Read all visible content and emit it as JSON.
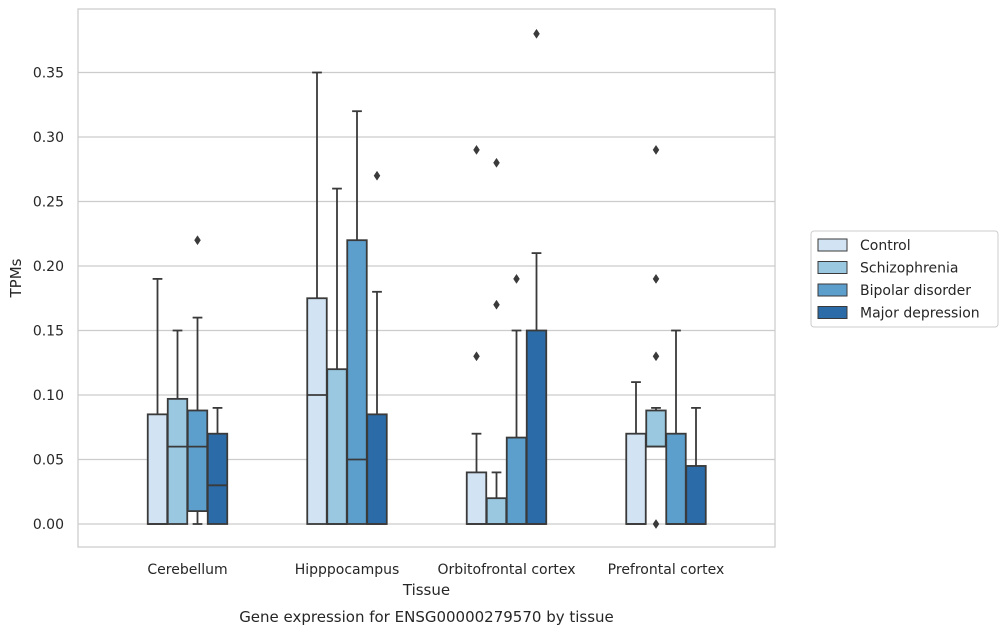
{
  "chart_data": {
    "type": "box",
    "title": "",
    "caption": "Gene expression for ENSG00000279570 by tissue",
    "xlabel": "Tissue",
    "ylabel": "TPMs",
    "ylim": [
      -0.018,
      0.398
    ],
    "yticks": [
      0.0,
      0.05,
      0.1,
      0.15,
      0.2,
      0.25,
      0.3,
      0.35
    ],
    "ytick_labels": [
      "0.00",
      "0.05",
      "0.10",
      "0.15",
      "0.20",
      "0.25",
      "0.30",
      "0.35"
    ],
    "grid": "horizontal",
    "legend_placement": "right",
    "categories": [
      "Cerebellum",
      "Hipppocampus",
      "Orbitofrontal cortex",
      "Prefrontal cortex"
    ],
    "series": [
      {
        "name": "Control",
        "color": "#d2e3f3",
        "boxes": [
          {
            "whislo": 0.0,
            "q1": 0.0,
            "med": 0.0,
            "q3": 0.085,
            "whishi": 0.19,
            "fliers": []
          },
          {
            "whislo": 0.0,
            "q1": 0.0,
            "med": 0.1,
            "q3": 0.175,
            "whishi": 0.35,
            "fliers": []
          },
          {
            "whislo": 0.0,
            "q1": 0.0,
            "med": 0.0,
            "q3": 0.04,
            "whishi": 0.07,
            "fliers": [
              0.13,
              0.29
            ]
          },
          {
            "whislo": 0.0,
            "q1": 0.0,
            "med": 0.0,
            "q3": 0.07,
            "whishi": 0.11,
            "fliers": []
          }
        ]
      },
      {
        "name": "Schizophrenia",
        "color": "#9ac8e0",
        "boxes": [
          {
            "whislo": 0.0,
            "q1": 0.0,
            "med": 0.06,
            "q3": 0.097,
            "whishi": 0.15,
            "fliers": []
          },
          {
            "whislo": 0.0,
            "q1": 0.0,
            "med": 0.0,
            "q3": 0.12,
            "whishi": 0.26,
            "fliers": []
          },
          {
            "whislo": 0.0,
            "q1": 0.0,
            "med": 0.0,
            "q3": 0.02,
            "whishi": 0.04,
            "fliers": [
              0.17,
              0.28
            ]
          },
          {
            "whislo": 0.06,
            "q1": 0.06,
            "med": 0.06,
            "q3": 0.088,
            "whishi": 0.09,
            "fliers": [
              0.0,
              0.13,
              0.19,
              0.29
            ]
          }
        ]
      },
      {
        "name": "Bipolar disorder",
        "color": "#5c9fcd",
        "boxes": [
          {
            "whislo": 0.0,
            "q1": 0.01,
            "med": 0.06,
            "q3": 0.088,
            "whishi": 0.16,
            "fliers": [
              0.22
            ]
          },
          {
            "whislo": 0.0,
            "q1": 0.0,
            "med": 0.05,
            "q3": 0.22,
            "whishi": 0.32,
            "fliers": []
          },
          {
            "whislo": 0.0,
            "q1": 0.0,
            "med": 0.0,
            "q3": 0.067,
            "whishi": 0.15,
            "fliers": [
              0.19
            ]
          },
          {
            "whislo": 0.0,
            "q1": 0.0,
            "med": 0.0,
            "q3": 0.07,
            "whishi": 0.15,
            "fliers": []
          }
        ]
      },
      {
        "name": "Major depression",
        "color": "#2b6ba8",
        "boxes": [
          {
            "whislo": 0.0,
            "q1": 0.0,
            "med": 0.03,
            "q3": 0.07,
            "whishi": 0.09,
            "fliers": []
          },
          {
            "whislo": 0.0,
            "q1": 0.0,
            "med": 0.0,
            "q3": 0.085,
            "whishi": 0.18,
            "fliers": [
              0.27
            ]
          },
          {
            "whislo": 0.0,
            "q1": 0.0,
            "med": 0.0,
            "q3": 0.15,
            "whishi": 0.21,
            "fliers": [
              0.38
            ]
          },
          {
            "whislo": 0.0,
            "q1": 0.0,
            "med": 0.0,
            "q3": 0.045,
            "whishi": 0.09,
            "fliers": []
          }
        ]
      }
    ]
  }
}
